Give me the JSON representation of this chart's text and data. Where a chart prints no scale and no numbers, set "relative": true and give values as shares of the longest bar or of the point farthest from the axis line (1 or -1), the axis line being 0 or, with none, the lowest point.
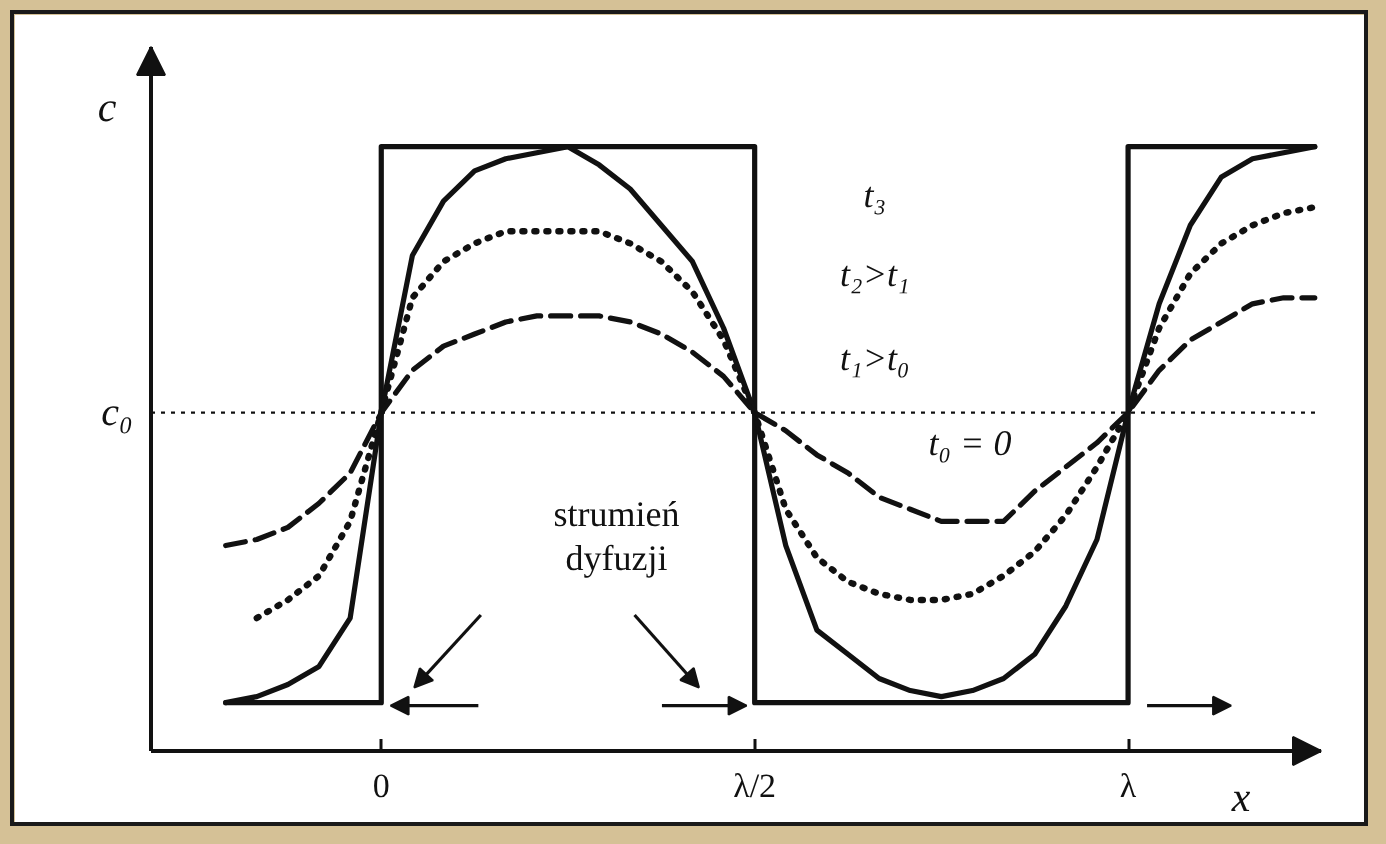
{
  "chart_data": {
    "type": "line",
    "relative": true,
    "xlabel": "x",
    "ylabel": "c",
    "categories": [
      null,
      null,
      null,
      null,
      null,
      "0",
      null,
      null,
      null,
      null,
      null,
      null,
      null,
      null,
      null,
      null,
      null,
      "λ/2",
      null,
      null,
      null,
      null,
      null,
      null,
      null,
      null,
      null,
      null,
      null,
      "λ",
      null,
      null,
      null,
      null,
      null,
      null
    ],
    "annotations": [
      "t₃",
      "t₂>t₁",
      "t₁>t₀",
      "t₀ = 0",
      "strumień dyfuzji"
    ],
    "ref_lines": [
      {
        "axis": "y",
        "value": 0.56,
        "label": "c₀",
        "color": "#111111",
        "line_style": "dotted"
      }
    ],
    "series": [
      {
        "type": "step",
        "color": "#111111",
        "line_style": "solid",
        "values": [
          0.08,
          0.08,
          0.08,
          0.08,
          0.08,
          1,
          1,
          1,
          1,
          1,
          1,
          1,
          1,
          1,
          1,
          1,
          1,
          0.08,
          0.08,
          0.08,
          0.08,
          0.08,
          0.08,
          0.08,
          0.08,
          0.08,
          0.08,
          0.08,
          0.08,
          1,
          1,
          1,
          1,
          1,
          1,
          1
        ]
      },
      {
        "color": "#111111",
        "line_style": "solid",
        "values": [
          0.08,
          0.09,
          0.11,
          0.14,
          0.22,
          0.56,
          0.82,
          0.91,
          0.96,
          0.98,
          0.99,
          1.0,
          0.97,
          0.93,
          0.87,
          0.81,
          0.7,
          0.56,
          0.34,
          0.2,
          0.16,
          0.12,
          0.1,
          0.09,
          0.1,
          0.12,
          0.16,
          0.24,
          0.35,
          0.56,
          0.74,
          0.87,
          0.95,
          0.98,
          0.99,
          1.0
        ]
      },
      {
        "color": "#111111",
        "line_style": "dotted",
        "values": [
          null,
          0.22,
          0.25,
          0.29,
          0.38,
          0.56,
          0.75,
          0.81,
          0.84,
          0.86,
          0.86,
          0.86,
          0.86,
          0.84,
          0.81,
          0.76,
          0.68,
          0.56,
          0.4,
          0.32,
          0.28,
          0.26,
          0.25,
          0.25,
          0.26,
          0.29,
          0.33,
          0.39,
          0.47,
          0.56,
          0.7,
          0.79,
          0.84,
          0.87,
          0.89,
          0.9
        ]
      },
      {
        "color": "#111111",
        "line_style": "dashed",
        "values": [
          0.34,
          0.35,
          0.37,
          0.41,
          0.46,
          0.56,
          0.63,
          0.67,
          0.69,
          0.71,
          0.72,
          0.72,
          0.72,
          0.71,
          0.69,
          0.66,
          0.62,
          0.56,
          0.53,
          0.49,
          0.46,
          0.42,
          0.4,
          0.38,
          0.38,
          0.38,
          0.43,
          0.47,
          0.51,
          0.56,
          0.63,
          0.68,
          0.71,
          0.74,
          0.75,
          0.75
        ]
      }
    ]
  }
}
